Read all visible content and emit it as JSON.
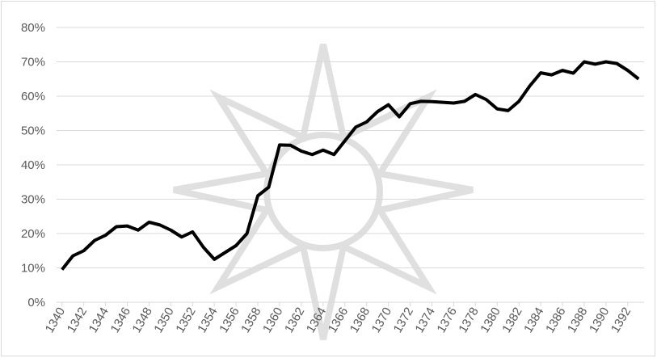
{
  "chart_data": {
    "type": "line",
    "x": [
      1340,
      1341,
      1342,
      1343,
      1344,
      1345,
      1346,
      1347,
      1348,
      1349,
      1350,
      1351,
      1352,
      1353,
      1354,
      1355,
      1356,
      1357,
      1358,
      1359,
      1360,
      1361,
      1362,
      1363,
      1364,
      1365,
      1366,
      1367,
      1368,
      1369,
      1370,
      1371,
      1372,
      1373,
      1374,
      1375,
      1376,
      1377,
      1378,
      1379,
      1380,
      1381,
      1382,
      1383,
      1384,
      1385,
      1386,
      1387,
      1388,
      1389,
      1390,
      1391,
      1392,
      1393
    ],
    "series": [
      {
        "color": "#000000",
        "values": [
          9.5,
          13.5,
          15,
          18,
          19.5,
          22,
          22.2,
          21,
          23.3,
          22.5,
          21,
          19,
          20.5,
          16,
          12.5,
          14.5,
          16.5,
          20,
          31,
          33.5,
          45.8,
          45.7,
          44,
          43,
          44.3,
          43,
          47,
          51,
          52.5,
          55.5,
          57.5,
          54,
          57.8,
          58.5,
          58.4,
          58.2,
          58,
          58.5,
          60.5,
          59,
          56.3,
          55.8,
          58.5,
          63,
          66.8,
          66.2,
          67.5,
          66.7,
          70,
          69.3,
          70,
          69.5,
          67.5,
          65
        ]
      }
    ],
    "xlim": [
      1339.5,
      1393.5
    ],
    "xticks": [
      1340,
      1342,
      1344,
      1346,
      1348,
      1350,
      1352,
      1354,
      1356,
      1358,
      1360,
      1362,
      1364,
      1366,
      1368,
      1370,
      1372,
      1374,
      1376,
      1378,
      1380,
      1382,
      1384,
      1386,
      1388,
      1390,
      1392
    ],
    "ylim": [
      0,
      80
    ],
    "yticks": [
      {
        "value": 0,
        "label": "0%"
      },
      {
        "value": 10,
        "label": "10%"
      },
      {
        "value": 20,
        "label": "20%"
      },
      {
        "value": 30,
        "label": "30%"
      },
      {
        "value": 40,
        "label": "40%"
      },
      {
        "value": 50,
        "label": "50%"
      },
      {
        "value": 60,
        "label": "60%"
      },
      {
        "value": 70,
        "label": "70%"
      },
      {
        "value": 80,
        "label": "80%"
      }
    ],
    "grid": true
  }
}
